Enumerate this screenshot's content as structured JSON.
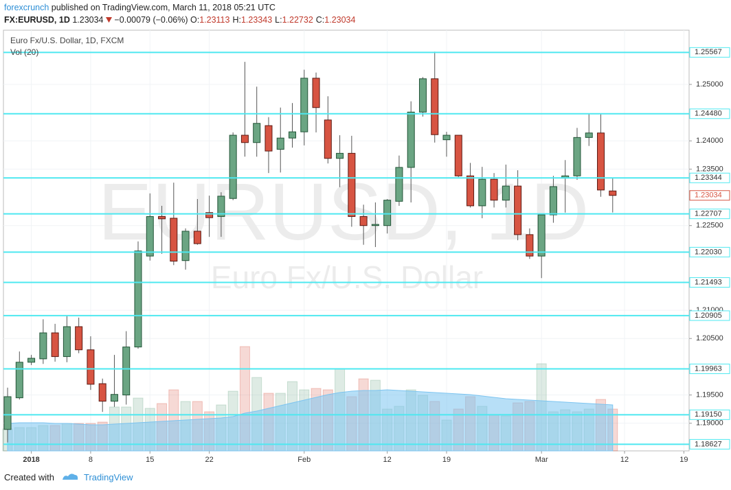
{
  "header": {
    "author": "forexcrunch",
    "published": "published on TradingView.com, March 11, 2018 05:21 UTC",
    "symbol": "FX:EURUSD, 1D",
    "last": "1.23034",
    "change": "−0.00079 (−0.06%)",
    "ohlc": [
      {
        "key": "O:",
        "value": "1.23113"
      },
      {
        "key": "H:",
        "value": "1.23343"
      },
      {
        "key": "L:",
        "value": "1.22732"
      },
      {
        "key": "C:",
        "value": "1.23034"
      }
    ]
  },
  "footer": {
    "created": "Created with",
    "brand": "TradingView"
  },
  "chart_data": {
    "type": "candlestick",
    "legend": [
      "Euro Fx/U.S. Dollar, 1D, FXCM",
      "Vol (20)"
    ],
    "watermark": [
      "EURUSD, 1D",
      "Euro Fx/U.S. Dollar"
    ],
    "up_color": "#6ba583",
    "down_color": "#d75442",
    "level_color": "#4de8f0",
    "xlim": [
      -0.35,
      57.44
    ],
    "xticks": [
      {
        "value": 2,
        "label": "2018"
      },
      {
        "value": 7,
        "label": "8"
      },
      {
        "value": 12,
        "label": "15"
      },
      {
        "value": 17,
        "label": "22"
      },
      {
        "value": 25,
        "label": "Feb"
      },
      {
        "value": 32,
        "label": "12"
      },
      {
        "value": 37,
        "label": "19"
      },
      {
        "value": 45,
        "label": "Mar"
      },
      {
        "value": 52,
        "label": "12"
      },
      {
        "value": 57,
        "label": "19"
      }
    ],
    "ylim": [
      1.1851,
      1.2596
    ],
    "yticks": [
      {
        "value": 1.25,
        "label": "1.25000"
      },
      {
        "value": 1.24,
        "label": "1.24000"
      },
      {
        "value": 1.235,
        "label": "1.23500"
      },
      {
        "value": 1.225,
        "label": "1.22500"
      },
      {
        "value": 1.21,
        "label": "1.21000"
      },
      {
        "value": 1.205,
        "label": "1.20500"
      },
      {
        "value": 1.195,
        "label": "1.19500"
      },
      {
        "value": 1.19,
        "label": "1.19000"
      }
    ],
    "levels": [
      1.25567,
      {
        "value": 1.2448,
        "label": "1.24480"
      },
      1.23344,
      1.22707,
      {
        "value": 1.2203,
        "label": "1.22030"
      },
      1.21493,
      1.20905,
      1.19963,
      {
        "value": 1.1915,
        "label": "1.19150"
      },
      1.18627
    ],
    "last_price": 1.23034,
    "open": [
      1.1889,
      1.1945,
      1.2008,
      1.2014,
      1.206,
      1.2018,
      1.2071,
      1.203,
      1.197,
      1.1939,
      1.195,
      1.2035,
      1.2196,
      1.2266,
      1.2263,
      1.2188,
      1.224,
      1.2273,
      1.2266,
      1.2298,
      1.241,
      1.2397,
      1.2427,
      1.2385,
      1.2405,
      1.2416,
      1.2511,
      1.2437,
      1.2369,
      1.2378,
      1.2266,
      1.225,
      1.225,
      1.2293,
      1.2353,
      1.2451,
      1.251,
      1.2402,
      1.241,
      1.2338,
      1.2285,
      1.2332,
      1.2295,
      1.232,
      1.2234,
      1.2196,
      1.2269,
      1.2334,
      1.2338,
      1.2406,
      1.2414,
      1.23113
    ],
    "high": [
      1.1963,
      1.2027,
      1.2021,
      1.2084,
      1.2076,
      1.2091,
      1.2087,
      1.2054,
      1.1979,
      1.2021,
      1.2063,
      1.2222,
      1.2307,
      1.2285,
      1.2326,
      1.2245,
      1.2297,
      1.2303,
      1.2309,
      1.2415,
      1.254,
      1.2496,
      1.2442,
      1.2459,
      1.2467,
      1.2526,
      1.2521,
      1.2479,
      1.241,
      1.2409,
      1.2287,
      1.2291,
      1.2297,
      1.2374,
      1.247,
      1.2513,
      1.2558,
      1.2416,
      1.241,
      1.2361,
      1.2354,
      1.2343,
      1.2358,
      1.2348,
      1.2245,
      1.2269,
      1.2338,
      1.2366,
      1.2423,
      1.2448,
      1.2448,
      1.23343
    ],
    "low": [
      1.1866,
      1.1942,
      1.2003,
      1.2005,
      1.2009,
      1.2008,
      1.2024,
      1.1959,
      1.192,
      1.1929,
      1.1933,
      1.2032,
      1.2188,
      1.22,
      1.218,
      1.2172,
      1.2216,
      1.223,
      1.223,
      1.2295,
      1.2372,
      1.2372,
      1.2343,
      1.2344,
      1.2388,
      1.2392,
      1.2415,
      1.236,
      1.2318,
      1.2248,
      1.2216,
      1.2212,
      1.2236,
      1.2285,
      1.2291,
      1.2443,
      1.2397,
      1.2372,
      1.2336,
      1.2282,
      1.2263,
      1.2282,
      1.2282,
      1.2224,
      1.2191,
      1.2157,
      1.2255,
      1.2273,
      1.2331,
      1.2391,
      1.2301,
      1.22732
    ],
    "close": [
      1.1947,
      1.2008,
      1.2015,
      1.206,
      1.2018,
      1.2071,
      1.203,
      1.1969,
      1.1939,
      1.1951,
      1.2035,
      1.2205,
      1.2266,
      1.2262,
      1.2187,
      1.224,
      1.2218,
      1.2264,
      1.2302,
      1.241,
      1.2397,
      1.2431,
      1.2382,
      1.2405,
      1.2416,
      1.2511,
      1.2459,
      1.2369,
      1.2378,
      1.2266,
      1.225,
      1.2252,
      1.2295,
      1.2353,
      1.2451,
      1.251,
      1.2411,
      1.241,
      1.2338,
      1.2285,
      1.2332,
      1.2295,
      1.232,
      1.2234,
      1.2196,
      1.2269,
      1.2319,
      1.2338,
      1.2406,
      1.2414,
      1.2313,
      1.23034
    ],
    "volume": [
      32,
      34,
      34,
      37,
      37,
      40,
      40,
      40,
      42,
      64,
      64,
      77,
      62,
      69,
      89,
      72,
      72,
      57,
      67,
      87,
      152,
      107,
      84,
      84,
      101,
      89,
      91,
      89,
      120,
      79,
      105,
      103,
      61,
      65,
      89,
      81,
      72,
      45,
      61,
      79,
      65,
      52,
      51,
      70,
      72,
      127,
      57,
      60,
      57,
      61,
      75,
      61
    ],
    "volume_ma": [
      40,
      41,
      41,
      41,
      40,
      40,
      39,
      38,
      38,
      39,
      40,
      41,
      42,
      43,
      44,
      45,
      46,
      47,
      48,
      50,
      55,
      58,
      62,
      66,
      70,
      74,
      78,
      82,
      85,
      87,
      88,
      88,
      89,
      88,
      87,
      86,
      85,
      84,
      83,
      82,
      80,
      78,
      76,
      75,
      74,
      73,
      72,
      71,
      70,
      69,
      68,
      67
    ],
    "volume_ma_color": "#7cc4f0"
  }
}
